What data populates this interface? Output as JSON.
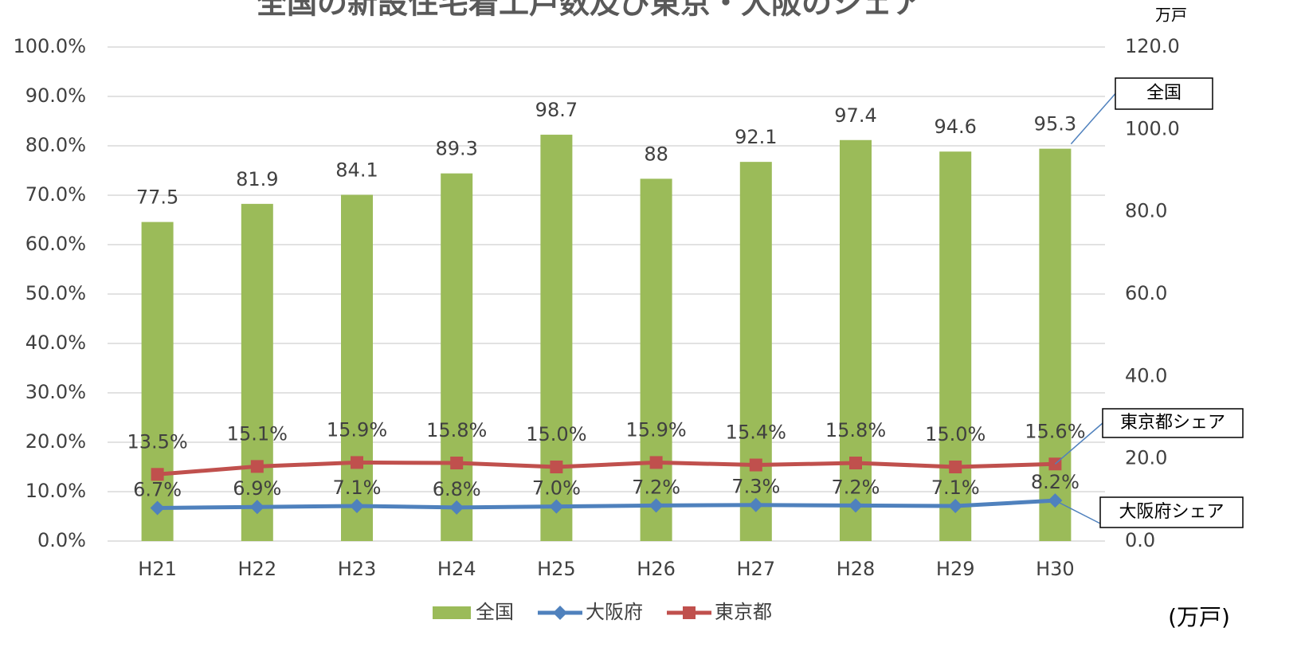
{
  "chart_data": {
    "type": "bar",
    "title": "全国の新設住宅着工戸数及び東京・大阪のシェア",
    "categories": [
      "H21",
      "H22",
      "H23",
      "H24",
      "H25",
      "H26",
      "H27",
      "H28",
      "H29",
      "H30"
    ],
    "series": [
      {
        "name": "全国",
        "type": "bar",
        "axis": "y2",
        "color": "#9bbb59",
        "values": [
          77.5,
          81.9,
          84.1,
          89.3,
          98.7,
          88.0,
          92.1,
          97.4,
          94.6,
          95.3
        ]
      },
      {
        "name": "大阪府",
        "type": "line",
        "color": "#4f81bd",
        "values": [
          6.7,
          6.9,
          7.1,
          6.8,
          7.0,
          7.2,
          7.3,
          7.2,
          7.1,
          8.2
        ],
        "value_labels": [
          "6.7%",
          "6.9%",
          "7.1%",
          "6.8%",
          "7.0%",
          "7.2%",
          "7.3%",
          "7.2%",
          "7.1%",
          "8.2%"
        ]
      },
      {
        "name": "東京都",
        "type": "line",
        "color": "#c0504d",
        "values": [
          13.5,
          15.1,
          15.9,
          15.8,
          15.0,
          15.9,
          15.4,
          15.8,
          15.0,
          15.6
        ],
        "value_labels": [
          "13.5%",
          "15.1%",
          "15.9%",
          "15.8%",
          "15.0%",
          "15.9%",
          "15.4%",
          "15.8%",
          "15.0%",
          "15.6%"
        ]
      }
    ],
    "ylim": [
      0,
      100
    ],
    "yticks": [
      {
        "value": 0,
        "label": "0.0%"
      },
      {
        "value": 10,
        "label": "10.0%"
      },
      {
        "value": 20,
        "label": "20.0%"
      },
      {
        "value": 30,
        "label": "30.0%"
      },
      {
        "value": 40,
        "label": "40.0%"
      },
      {
        "value": 50,
        "label": "50.0%"
      },
      {
        "value": 60,
        "label": "60.0%"
      },
      {
        "value": 70,
        "label": "70.0%"
      },
      {
        "value": 80,
        "label": "80.0%"
      },
      {
        "value": 90,
        "label": "90.0%"
      },
      {
        "value": 100,
        "label": "100.0%"
      }
    ],
    "y2lim": [
      0,
      120
    ],
    "y2ticks": [
      {
        "value": 0,
        "label": "0.0"
      },
      {
        "value": 20,
        "label": "20.0"
      },
      {
        "value": 40,
        "label": "40.0"
      },
      {
        "value": 60,
        "label": "60.0"
      },
      {
        "value": 80,
        "label": "80.0"
      },
      {
        "value": 100,
        "label": "100.0"
      },
      {
        "value": 120,
        "label": "120.0"
      }
    ],
    "y2_unit": "万戸",
    "unit_note": "(万戸)",
    "annotations": [
      "全国",
      "東京都シェア",
      "大阪府シェア"
    ],
    "grid": true,
    "legend": "bottom"
  }
}
